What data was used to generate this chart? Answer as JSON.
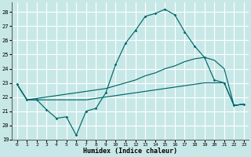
{
  "xlabel": "Humidex (Indice chaleur)",
  "bg_color": "#c8e8e8",
  "grid_color": "#ffffff",
  "line_color": "#006868",
  "xlim": [
    -0.5,
    23.5
  ],
  "ylim": [
    19.0,
    28.7
  ],
  "yticks": [
    19,
    20,
    21,
    22,
    23,
    24,
    25,
    26,
    27,
    28
  ],
  "xticks": [
    0,
    1,
    2,
    3,
    4,
    5,
    6,
    7,
    8,
    9,
    10,
    11,
    12,
    13,
    14,
    15,
    16,
    17,
    18,
    19,
    20,
    21,
    22,
    23
  ],
  "curve1_x": [
    0,
    1,
    2,
    3,
    4,
    5,
    6,
    7,
    8,
    9,
    10,
    11,
    12,
    13,
    14,
    15,
    16,
    17,
    18,
    19,
    20,
    21,
    22,
    23
  ],
  "curve1_y": [
    22.9,
    21.8,
    21.8,
    21.1,
    20.5,
    20.6,
    19.3,
    21.0,
    21.2,
    22.3,
    24.3,
    25.8,
    26.7,
    27.7,
    27.9,
    28.2,
    27.8,
    26.6,
    25.6,
    24.8,
    23.2,
    23.0,
    21.4,
    21.5
  ],
  "curve2_x": [
    0,
    1,
    2,
    3,
    4,
    5,
    6,
    7,
    8,
    9,
    10,
    11,
    12,
    13,
    14,
    15,
    16,
    17,
    18,
    19,
    20,
    21,
    22,
    23
  ],
  "curve2_y": [
    22.9,
    21.8,
    21.9,
    22.0,
    22.1,
    22.2,
    22.3,
    22.4,
    22.5,
    22.6,
    22.8,
    23.0,
    23.2,
    23.5,
    23.7,
    24.0,
    24.2,
    24.5,
    24.7,
    24.8,
    24.6,
    24.0,
    21.4,
    21.5
  ],
  "curve3_x": [
    0,
    1,
    2,
    3,
    4,
    5,
    6,
    7,
    8,
    9,
    10,
    11,
    12,
    13,
    14,
    15,
    16,
    17,
    18,
    19,
    20,
    21,
    22,
    23
  ],
  "curve3_y": [
    22.9,
    21.8,
    21.8,
    21.8,
    21.8,
    21.8,
    21.8,
    21.8,
    21.9,
    22.0,
    22.1,
    22.2,
    22.3,
    22.4,
    22.5,
    22.6,
    22.7,
    22.8,
    22.9,
    23.0,
    23.0,
    23.0,
    21.4,
    21.5
  ]
}
